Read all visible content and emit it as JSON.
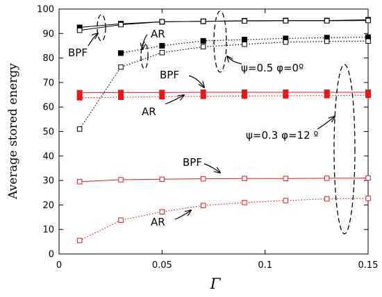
{
  "chart_data": {
    "type": "line",
    "ylabel": "Average stored energy",
    "xlabel": "Γ",
    "xlim": [
      0,
      0.15
    ],
    "ylim": [
      0,
      100
    ],
    "xticks": [
      {
        "v": 0,
        "label": "0"
      },
      {
        "v": 0.05,
        "label": "0.05"
      },
      {
        "v": 0.1,
        "label": "0.1"
      },
      {
        "v": 0.15,
        "label": "0.15"
      }
    ],
    "yticks": [
      {
        "v": 0,
        "label": "0"
      },
      {
        "v": 10,
        "label": "10"
      },
      {
        "v": 20,
        "label": "20"
      },
      {
        "v": 30,
        "label": "30"
      },
      {
        "v": 40,
        "label": "40"
      },
      {
        "v": 50,
        "label": "50"
      },
      {
        "v": 60,
        "label": "60"
      },
      {
        "v": 70,
        "label": "70"
      },
      {
        "v": 80,
        "label": "80"
      },
      {
        "v": 90,
        "label": "90"
      },
      {
        "v": 100,
        "label": "100"
      }
    ],
    "x": [
      0.01,
      0.03,
      0.05,
      0.07,
      0.09,
      0.11,
      0.13,
      0.15
    ],
    "series": [
      {
        "values": [
          92.5,
          94.0,
          94.8,
          95.0,
          95.2,
          95.3,
          95.3,
          95.6
        ],
        "color": "#000000",
        "marker": "filled",
        "dash": "solid"
      },
      {
        "values": [
          91.3,
          93.6,
          94.8,
          95.0,
          95.1,
          95.2,
          95.2,
          95.3
        ],
        "color": "#000000",
        "marker": "open",
        "dash": "solid"
      },
      {
        "values": [
          null,
          82.0,
          85.0,
          87.0,
          87.5,
          88.0,
          88.3,
          88.5
        ],
        "color": "#000000",
        "marker": "filled",
        "dash": "dotted"
      },
      {
        "values": [
          51.0,
          76.3,
          82.2,
          84.6,
          85.6,
          86.5,
          86.8,
          86.9
        ],
        "color": "#000000",
        "marker": "open",
        "dash": "dotted"
      },
      {
        "values": [
          65.8,
          65.9,
          65.9,
          66.0,
          66.0,
          66.0,
          66.0,
          66.0
        ],
        "color": "#e41a1a",
        "marker": "filled",
        "dash": "solid"
      },
      {
        "values": [
          63.8,
          64.0,
          64.2,
          64.4,
          64.5,
          64.6,
          64.7,
          64.8
        ],
        "color": "#e41a1a",
        "marker": "filled",
        "dash": "dotted"
      },
      {
        "values": [
          29.5,
          30.3,
          30.5,
          30.7,
          30.8,
          30.8,
          30.9,
          31.0
        ],
        "color": "#e41a1a",
        "marker": "open",
        "dash": "solid"
      },
      {
        "values": [
          5.5,
          13.8,
          17.2,
          19.8,
          21.0,
          21.8,
          22.5,
          22.7
        ],
        "color": "#e41a1a",
        "marker": "open",
        "dash": "dotted"
      }
    ],
    "annotations": [
      {
        "text": "BPF"
      },
      {
        "text": "AR"
      },
      {
        "text": "ψ=0.5  φ=0º"
      },
      {
        "text": "BPF"
      },
      {
        "text": "AR"
      },
      {
        "text": "ψ=0.3   φ=12 º"
      },
      {
        "text": "BPF"
      },
      {
        "text": "AR"
      }
    ]
  }
}
